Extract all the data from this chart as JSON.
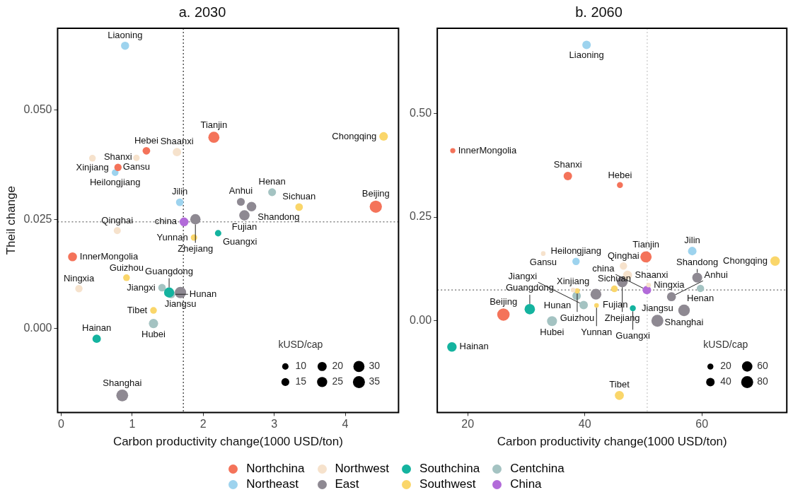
{
  "chart_data": [
    {
      "type": "bubble",
      "title": "a. 2030",
      "xlabel": "Carbon productivity change(1000 USD/ton)",
      "ylabel": "Theil change",
      "legend_title": "kUSD/cap",
      "size_legend": [
        10,
        15,
        20,
        25,
        30,
        35
      ],
      "xlim": [
        -0.05,
        4.75
      ],
      "xticks": [
        0,
        1,
        2,
        3,
        4
      ],
      "ylim": [
        -0.0193,
        0.0688
      ],
      "yticks": [
        {
          "value": 0,
          "label": "0.000"
        },
        {
          "value": 0.025,
          "label": "0.025"
        },
        {
          "value": 0.05,
          "label": "0.050"
        }
      ],
      "ref_lines": [
        {
          "axis": "x",
          "value": 1.72,
          "color": "#000000",
          "line_style": "dotted"
        },
        {
          "axis": "y",
          "value": 0.0244,
          "color": "#444444",
          "line_style": "dotted"
        }
      ],
      "series": [
        {
          "color": "#f4735a",
          "x": [
            4.43,
            2.15,
            1.2,
            0.8,
            0.16
          ],
          "values": [
            0.0279,
            0.0438,
            0.0407,
            0.0369,
            0.0164
          ],
          "sizes": [
            36,
            30,
            14,
            13,
            19
          ]
        },
        {
          "color": "#9dd3ee",
          "x": [
            0.9,
            1.67,
            0.76
          ],
          "values": [
            0.0648,
            0.0289,
            0.0357
          ],
          "sizes": [
            16,
            14,
            11
          ]
        },
        {
          "color": "#f6e2cc",
          "x": [
            1.63,
            1.06,
            0.79,
            0.25,
            0.44
          ],
          "values": [
            0.0404,
            0.0391,
            0.0224,
            0.0091,
            0.039
          ],
          "sizes": [
            17,
            10,
            12,
            13,
            11
          ]
        },
        {
          "color": "#8e8992",
          "x": [
            0.86,
            1.68,
            1.89,
            2.53,
            2.58,
            2.68
          ],
          "values": [
            -0.0154,
            0.0082,
            0.025,
            0.029,
            0.0259,
            0.0279
          ],
          "sizes": [
            34,
            31,
            26,
            15,
            26,
            22
          ]
        },
        {
          "color": "#14b39f",
          "x": [
            1.52,
            2.21,
            0.5
          ],
          "values": [
            0.0082,
            0.0218,
            -0.0024
          ],
          "sizes": [
            25,
            10,
            17
          ]
        },
        {
          "color": "#fad66a",
          "x": [
            4.54,
            3.35,
            0.92,
            1.87,
            1.3
          ],
          "values": [
            0.044,
            0.0278,
            0.0116,
            0.0208,
            0.0041
          ],
          "sizes": [
            18,
            14,
            11,
            10,
            11
          ]
        },
        {
          "color": "#a4c3c2",
          "x": [
            2.97,
            1.3,
            1.55,
            1.42
          ],
          "values": [
            0.0312,
            0.0011,
            0.0078,
            0.0093
          ],
          "sizes": [
            15,
            21,
            16,
            14
          ]
        },
        {
          "color": "#b26bd9",
          "x": [
            1.73
          ],
          "values": [
            0.0244
          ],
          "sizes": [
            19
          ]
        }
      ],
      "annotations": [
        {
          "text": "Beijing",
          "x": 4.43,
          "y": 0.0279
        },
        {
          "text": "Tianjin",
          "x": 2.15,
          "y": 0.0438
        },
        {
          "text": "Hebei",
          "x": 1.2,
          "y": 0.0407
        },
        {
          "text": "Shanxi",
          "x": 0.8,
          "y": 0.0369
        },
        {
          "text": "InnerMongolia",
          "x": 0.16,
          "y": 0.0164
        },
        {
          "text": "Liaoning",
          "x": 0.9,
          "y": 0.0648
        },
        {
          "text": "Jilin",
          "x": 1.67,
          "y": 0.0289
        },
        {
          "text": "Heilongjiang",
          "x": 0.76,
          "y": 0.0357
        },
        {
          "text": "Shaanxi",
          "x": 1.63,
          "y": 0.0404
        },
        {
          "text": "Gansu",
          "x": 1.06,
          "y": 0.0391
        },
        {
          "text": "Qinghai",
          "x": 0.79,
          "y": 0.0224
        },
        {
          "text": "Ningxia",
          "x": 0.25,
          "y": 0.0091
        },
        {
          "text": "Xinjiang",
          "x": 0.44,
          "y": 0.039
        },
        {
          "text": "Shanghai",
          "x": 0.86,
          "y": -0.0154
        },
        {
          "text": "Jiangsu",
          "x": 1.68,
          "y": 0.0082
        },
        {
          "text": "Zhejiang",
          "x": 1.89,
          "y": 0.025
        },
        {
          "text": "Anhui",
          "x": 2.53,
          "y": 0.029
        },
        {
          "text": "Fujian",
          "x": 2.58,
          "y": 0.0259
        },
        {
          "text": "Shandong",
          "x": 2.68,
          "y": 0.0279
        },
        {
          "text": "Guangdong",
          "x": 1.52,
          "y": 0.0082
        },
        {
          "text": "Guangxi",
          "x": 2.21,
          "y": 0.0218
        },
        {
          "text": "Hainan",
          "x": 0.5,
          "y": -0.0024
        },
        {
          "text": "Chongqing",
          "x": 4.54,
          "y": 0.044
        },
        {
          "text": "Sichuan",
          "x": 3.35,
          "y": 0.0278
        },
        {
          "text": "Guizhou",
          "x": 0.92,
          "y": 0.0116
        },
        {
          "text": "Yunnan",
          "x": 1.87,
          "y": 0.0208
        },
        {
          "text": "Tibet",
          "x": 1.3,
          "y": 0.0041
        },
        {
          "text": "Henan",
          "x": 2.97,
          "y": 0.0312
        },
        {
          "text": "Hubei",
          "x": 1.3,
          "y": 0.0011
        },
        {
          "text": "Hunan",
          "x": 1.55,
          "y": 0.0078
        },
        {
          "text": "Jiangxi",
          "x": 1.42,
          "y": 0.0093
        },
        {
          "text": "china",
          "x": 1.73,
          "y": 0.0244
        }
      ]
    },
    {
      "type": "bubble",
      "title": "b. 2060",
      "xlabel": "Carbon productivity change(1000 USD/ton)",
      "legend_title": "kUSD/cap",
      "size_legend": [
        20,
        40,
        60,
        80
      ],
      "xlim": [
        14.8,
        74.5
      ],
      "xticks": [
        20,
        40,
        60
      ],
      "ylim": [
        -0.221,
        0.705
      ],
      "yticks": [
        {
          "value": 0,
          "label": "0.00"
        },
        {
          "value": 0.25,
          "label": "0.25"
        },
        {
          "value": 0.5,
          "label": "0.50"
        }
      ],
      "legend": "bottom",
      "ref_lines": [
        {
          "axis": "x",
          "value": 50.66,
          "color": "#bbbbbb",
          "line_style": "dotted"
        },
        {
          "axis": "y",
          "value": 0.0743,
          "color": "#444444",
          "line_style": "dotted"
        }
      ],
      "series": [
        {
          "name": "Northchina",
          "color": "#f4735a",
          "x": [
            26.1,
            50.45,
            46.0,
            37.1,
            17.45
          ],
          "values": [
            0.015,
            0.154,
            0.327,
            0.349,
            0.41
          ],
          "sizes": [
            85,
            70,
            20,
            40,
            15
          ]
        },
        {
          "name": "Northeast",
          "color": "#9dd3ee",
          "x": [
            40.3,
            58.35,
            38.5
          ],
          "values": [
            0.665,
            0.168,
            0.143
          ],
          "sizes": [
            40,
            40,
            30
          ]
        },
        {
          "name": "Northwest",
          "color": "#f6e2cc",
          "x": [
            47.3,
            32.9,
            46.6,
            50.9,
            38.0
          ],
          "values": [
            0.11,
            0.162,
            0.132,
            0.086,
            0.074
          ],
          "sizes": [
            45,
            12,
            30,
            12,
            12
          ]
        },
        {
          "name": "East",
          "color": "#8e8992",
          "x": [
            56.95,
            52.4,
            46.4,
            54.8,
            41.9,
            59.2
          ],
          "values": [
            0.025,
            0.0,
            0.094,
            0.058,
            0.064,
            0.104
          ],
          "sizes": [
            75,
            80,
            65,
            45,
            65,
            55
          ]
        },
        {
          "name": "Southchina",
          "color": "#14b39f",
          "x": [
            30.6,
            48.2,
            17.3
          ],
          "values": [
            0.028,
            0.03,
            -0.063
          ],
          "sizes": [
            60,
            20,
            50
          ]
        },
        {
          "name": "Southwest",
          "color": "#fad66a",
          "x": [
            72.5,
            45.05,
            38.7,
            42.0,
            45.9
          ],
          "values": [
            0.144,
            0.077,
            0.072,
            0.037,
            -0.18
          ],
          "sizes": [
            50,
            25,
            15,
            12,
            45
          ]
        },
        {
          "name": "Centchina",
          "color": "#a4c3c2",
          "x": [
            59.75,
            34.4,
            38.6,
            39.8
          ],
          "values": [
            0.078,
            -0.001,
            0.06,
            0.038
          ],
          "sizes": [
            30,
            55,
            40,
            40
          ]
        },
        {
          "name": "China",
          "color": "#b26bd9",
          "x": [
            50.6
          ],
          "values": [
            0.074
          ],
          "sizes": [
            40
          ]
        }
      ],
      "annotations": [
        {
          "text": "Beijing",
          "x": 26.1,
          "y": 0.015
        },
        {
          "text": "Tianjin",
          "x": 50.45,
          "y": 0.154
        },
        {
          "text": "Hebei",
          "x": 46.0,
          "y": 0.327
        },
        {
          "text": "Shanxi",
          "x": 37.1,
          "y": 0.349
        },
        {
          "text": "InnerMongolia",
          "x": 17.45,
          "y": 0.41
        },
        {
          "text": "Liaoning",
          "x": 40.3,
          "y": 0.665
        },
        {
          "text": "Jilin",
          "x": 58.35,
          "y": 0.168
        },
        {
          "text": "Heilongjiang",
          "x": 38.5,
          "y": 0.143
        },
        {
          "text": "Shaanxi",
          "x": 47.3,
          "y": 0.11
        },
        {
          "text": "Gansu",
          "x": 32.9,
          "y": 0.162
        },
        {
          "text": "Qinghai",
          "x": 46.6,
          "y": 0.132
        },
        {
          "text": "Ningxia",
          "x": 50.9,
          "y": 0.086
        },
        {
          "text": "Xinjiang",
          "x": 38.0,
          "y": 0.074
        },
        {
          "text": "Shanghai",
          "x": 56.95,
          "y": 0.025
        },
        {
          "text": "Jiangsu",
          "x": 52.4,
          "y": 0.0
        },
        {
          "text": "Zhejiang",
          "x": 46.4,
          "y": 0.094
        },
        {
          "text": "Anhui",
          "x": 54.8,
          "y": 0.058
        },
        {
          "text": "Fujian",
          "x": 41.9,
          "y": 0.064
        },
        {
          "text": "Shandong",
          "x": 59.2,
          "y": 0.104
        },
        {
          "text": "Guangdong",
          "x": 30.6,
          "y": 0.028
        },
        {
          "text": "Guangxi",
          "x": 48.2,
          "y": 0.03
        },
        {
          "text": "Hainan",
          "x": 17.3,
          "y": -0.063
        },
        {
          "text": "Chongqing",
          "x": 72.5,
          "y": 0.144
        },
        {
          "text": "Sichuan",
          "x": 45.05,
          "y": 0.077
        },
        {
          "text": "Guizhou",
          "x": 38.7,
          "y": 0.072
        },
        {
          "text": "Yunnan",
          "x": 42.0,
          "y": 0.037
        },
        {
          "text": "Tibet",
          "x": 45.9,
          "y": -0.18
        },
        {
          "text": "Henan",
          "x": 59.75,
          "y": 0.078
        },
        {
          "text": "Hubei",
          "x": 34.4,
          "y": -0.001
        },
        {
          "text": "Hunan",
          "x": 38.6,
          "y": 0.06
        },
        {
          "text": "Jiangxi",
          "x": 39.8,
          "y": 0.038
        },
        {
          "text": "china",
          "x": 50.6,
          "y": 0.074
        }
      ]
    }
  ]
}
